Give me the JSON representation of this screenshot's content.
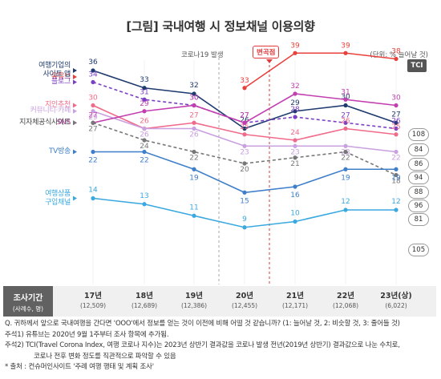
{
  "title": "[그림] 국내여행 시 정보채널 이용의향",
  "unit_note": "(단위: % 늘어날 것)",
  "covid_label": "코로나19 발생",
  "inflection_label": "변곡점",
  "tci_header": "TCI",
  "period_header": {
    "label": "조사기간",
    "sub": "(사례수, 명)"
  },
  "periods": [
    {
      "year": "17년",
      "n": "(12,509)"
    },
    {
      "year": "18년",
      "n": "(12,689)"
    },
    {
      "year": "19년",
      "n": "(12,386)"
    },
    {
      "year": "20년",
      "n": "(12,455)"
    },
    {
      "year": "21년",
      "n": "(12,171)"
    },
    {
      "year": "22년",
      "n": "(12,068)"
    },
    {
      "year": "23년(상)",
      "n": "(6,022)"
    }
  ],
  "notes": [
    "Q. 귀하께서 앞으로 국내여행을 간다면 'OOO'에서 정보를 얻는 것이 이전에 비해 어떨 것 같습니까? (1: 늘어날 것, 2: 비슷할 것, 3: 줄어들 것)",
    "주석1) 유튜브는 2020년 9월 1주부터 조사 항목에 추가됨.",
    "주석2) TCI(Travel Corona Index, 여행 코로나 지수)는 2023년 상반기 결과값을 코로나 발생 전년(2019년 상반기) 결과값으로 나눈 수치로,",
    "코로나 전후 변화 정도를 직관적으로 파악할 수 있음",
    "* 출처 : 컨슈머인사이트 '주례 여행 행태 및 계획 조사'"
  ],
  "chart_data": {
    "type": "line",
    "title": "[그림] 국내여행 시 정보채널 이용의향",
    "categories": [
      "17년",
      "18년",
      "19년",
      "20년",
      "21년",
      "22년",
      "23년(상)"
    ],
    "ylim": [
      0,
      45
    ],
    "ylabel": "(단위: % 늘어날 것)",
    "annotations": [
      "코로나19 발생",
      "변곡점"
    ],
    "series": [
      {
        "name": "유튜브",
        "color": "#e8413c",
        "dash": false,
        "legend": [
          "유튜브"
        ],
        "values": [
          null,
          null,
          null,
          33,
          39,
          39,
          38
        ],
        "tci": null
      },
      {
        "name": "여행기업의 사이트·앱",
        "color": "#1f3a6e",
        "dash": false,
        "legend": [
          "여행기업의",
          "사이트·앱"
        ],
        "values": [
          36,
          33,
          32,
          26,
          29,
          30,
          27
        ],
        "tci": "84"
      },
      {
        "name": "블로그",
        "color": "#7b3fc4",
        "dash": true,
        "legend": [
          "블로그"
        ],
        "values": [
          34,
          31,
          30,
          27,
          28,
          27,
          26
        ],
        "tci": "86"
      },
      {
        "name": "지인추천",
        "color": "#f06a8a",
        "dash": false,
        "legend": [
          "지인추천"
        ],
        "values": [
          30,
          26,
          27,
          25,
          24,
          26,
          25
        ],
        "tci": "94"
      },
      {
        "name": "커뮤니티·카페",
        "color": "#c9a0e0",
        "dash": false,
        "legend": [
          "커뮤니티·카페"
        ],
        "values": [
          29,
          26,
          26,
          23,
          23,
          23,
          22
        ],
        "tci": "88"
      },
      {
        "name": "SNS",
        "color": "#c23fb0",
        "dash": false,
        "legend": [
          "SNS"
        ],
        "values": [
          27,
          29,
          30,
          27,
          32,
          31,
          30
        ],
        "tci": "108"
      },
      {
        "name": "지자체공식사이트",
        "color": "#777777",
        "dash": true,
        "legend": [
          "지자체공식사이트"
        ],
        "values": [
          27,
          24,
          22,
          20,
          21,
          22,
          18
        ],
        "tci": "81"
      },
      {
        "name": "TV방송",
        "color": "#3f7fc9",
        "dash": false,
        "legend": [
          "TV방송"
        ],
        "values": [
          22,
          22,
          19,
          15,
          16,
          19,
          19
        ],
        "tci": "96"
      },
      {
        "name": "여행상품 구입채널",
        "color": "#3aa9e0",
        "dash": false,
        "legend": [
          "여행상품",
          "구입채널"
        ],
        "values": [
          14,
          13,
          11,
          9,
          10,
          12,
          12
        ],
        "tci": "105"
      }
    ]
  }
}
